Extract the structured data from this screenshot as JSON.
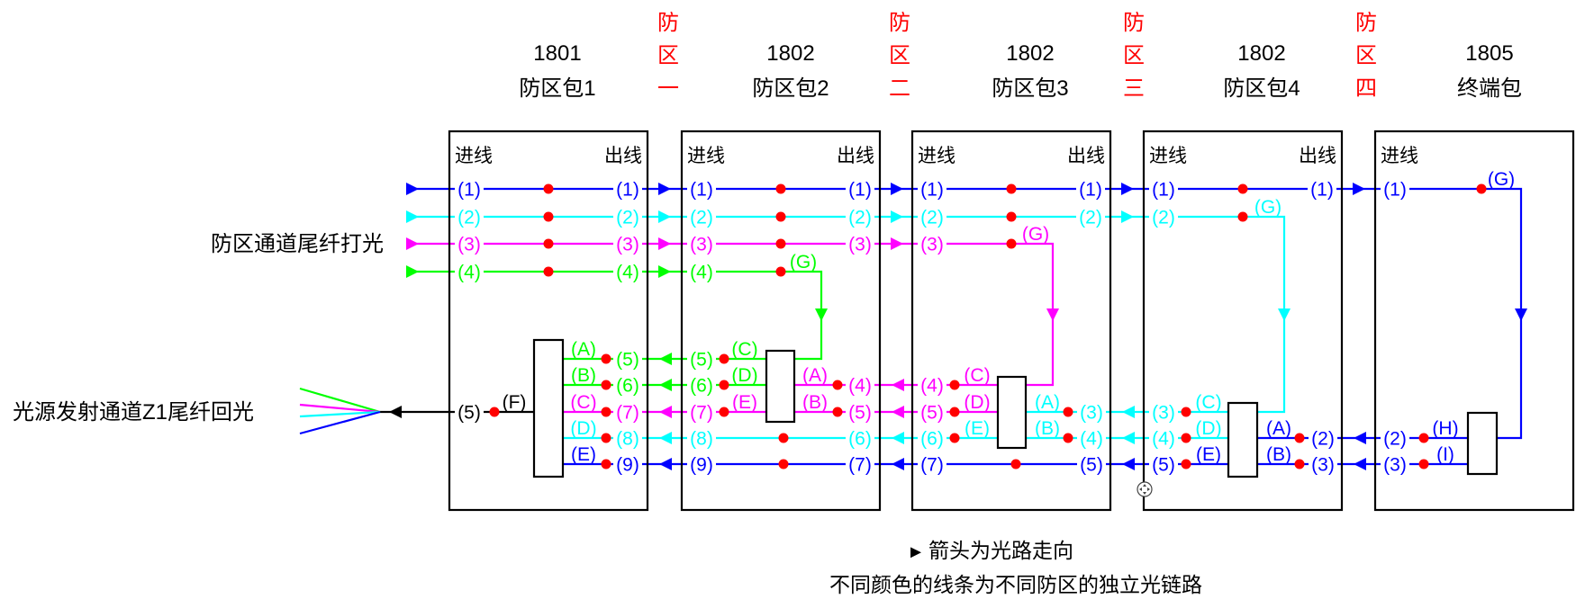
{
  "header": {
    "boxes": [
      {
        "id": "1801",
        "name": "防区包1"
      },
      {
        "id": "1802",
        "name": "防区包2"
      },
      {
        "id": "1802",
        "name": "防区包3"
      },
      {
        "id": "1802",
        "name": "防区包4"
      },
      {
        "id": "1805",
        "name": "终端包"
      }
    ],
    "zones": [
      [
        "防",
        "区",
        "一"
      ],
      [
        "防",
        "区",
        "二"
      ],
      [
        "防",
        "区",
        "三"
      ],
      [
        "防",
        "区",
        "四"
      ]
    ]
  },
  "labels": {
    "in": "进线",
    "out": "出线",
    "inject": "防区通道尾纤打光",
    "return": "光源发射通道Z1尾纤回光"
  },
  "legend": {
    "arrow_symbol": "►",
    "arrow_text": "箭头为光路走向",
    "color_text": "不同颜色的线条为不同防区的独立光链路"
  },
  "colors": {
    "blue": "#0000ff",
    "cyan": "#00ffff",
    "magenta": "#ff00ff",
    "green": "#00ff00",
    "node": "#ff0000",
    "zone_text": "#ff0000",
    "frame": "#000000"
  },
  "icons": {
    "cursor": "move-cursor-icon"
  },
  "boxes": [
    {
      "top_in": [
        "(1)",
        "(2)",
        "(3)",
        "(4)"
      ],
      "top_out": [
        "(1)",
        "(2)",
        "(3)",
        "(4)"
      ],
      "bottom_out": [
        "(5)",
        "(6)",
        "(7)",
        "(8)",
        "(9)"
      ],
      "splitter": [
        "(A)",
        "(B)",
        "(C)",
        "(D)",
        "(E)"
      ],
      "return_port": "(5)",
      "return_branch": "(F)"
    },
    {
      "top_in": [
        "(1)",
        "(2)",
        "(3)",
        "(4)"
      ],
      "top_out": [
        "(1)",
        "(2)",
        "(3)"
      ],
      "tap": "(G)",
      "bottom_in": [
        "(5)",
        "(6)",
        "(7)",
        "(8)",
        "(9)"
      ],
      "splitter_in": [
        "(C)",
        "(D)",
        "(E)"
      ],
      "splitter_out": [
        "(A)",
        "(B)"
      ],
      "bottom_out": [
        "(4)",
        "(5)",
        "(6)",
        "(7)"
      ]
    },
    {
      "top_in": [
        "(1)",
        "(2)",
        "(3)"
      ],
      "top_out": [
        "(1)",
        "(2)"
      ],
      "tap": "(G)",
      "bottom_in": [
        "(4)",
        "(5)",
        "(6)",
        "(7)"
      ],
      "splitter_in": [
        "(C)",
        "(D)",
        "(E)"
      ],
      "splitter_out": [
        "(A)",
        "(B)"
      ],
      "bottom_out": [
        "(3)",
        "(4)",
        "(5)"
      ]
    },
    {
      "top_in": [
        "(1)",
        "(2)"
      ],
      "top_out": [
        "(1)"
      ],
      "tap": "(G)",
      "bottom_in": [
        "(3)",
        "(4)",
        "(5)"
      ],
      "splitter_in": [
        "(C)",
        "(D)",
        "(E)"
      ],
      "splitter_out": [
        "(A)",
        "(B)"
      ],
      "bottom_out": [
        "(2)",
        "(3)"
      ]
    },
    {
      "top_in": [
        "(1)"
      ],
      "tap": "(G)",
      "bottom_in": [
        "(2)",
        "(3)"
      ],
      "splitter_in": [
        "(H)",
        "(I)"
      ]
    }
  ]
}
